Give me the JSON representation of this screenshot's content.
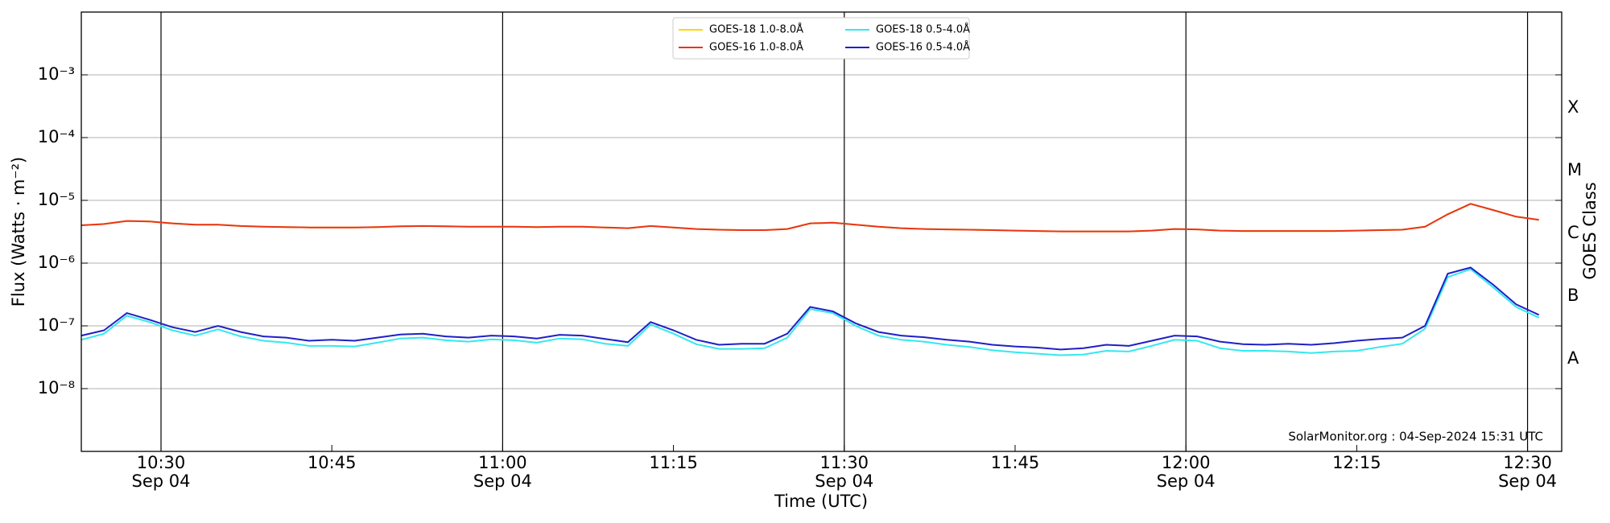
{
  "chart_data": {
    "type": "line",
    "y_label": "Flux (Watts · m⁻²)",
    "x_label": "Time (UTC)",
    "y2_label": "GOES Class",
    "annotation": "SolarMonitor.org : 04-Sep-2024 15:31 UTC",
    "log_y": true,
    "grid": true,
    "legend": "top",
    "xlim": [
      "10:23",
      "12:33"
    ],
    "xticks": [
      {
        "value": "10:30",
        "label": "10:30\nSep 04"
      },
      "10:45",
      {
        "value": "11:00",
        "label": "11:00\nSep 04"
      },
      "11:15",
      {
        "value": "11:30",
        "label": "11:30\nSep 04"
      },
      "11:45",
      {
        "value": "12:00",
        "label": "12:00\nSep 04"
      },
      "12:15",
      {
        "value": "12:30",
        "label": "12:30\nSep 04"
      }
    ],
    "ylim": [
      1e-09,
      0.01
    ],
    "yticks": [
      {
        "value": 1e-08,
        "label": "10⁻⁸"
      },
      {
        "value": 1e-07,
        "label": "10⁻⁷"
      },
      {
        "value": 1e-06,
        "label": "10⁻⁶"
      },
      {
        "value": 1e-05,
        "label": "10⁻⁵"
      },
      {
        "value": 0.0001,
        "label": "10⁻⁴"
      },
      {
        "value": 0.001,
        "label": "10⁻³"
      }
    ],
    "y2lim": [
      1e-09,
      0.01
    ],
    "y2ticks": [
      {
        "value": 3e-08,
        "label": "A"
      },
      {
        "value": 3e-07,
        "label": "B"
      },
      {
        "value": 3e-06,
        "label": "C"
      },
      {
        "value": 3e-05,
        "label": "M"
      },
      {
        "value": 0.0003,
        "label": "X"
      }
    ],
    "x": [
      "10:23",
      "10:25",
      "10:27",
      "10:29",
      "10:31",
      "10:33",
      "10:35",
      "10:37",
      "10:39",
      "10:41",
      "10:43",
      "10:45",
      "10:47",
      "10:49",
      "10:51",
      "10:53",
      "10:55",
      "10:57",
      "10:59",
      "11:01",
      "11:03",
      "11:05",
      "11:07",
      "11:09",
      "11:11",
      "11:13",
      "11:15",
      "11:17",
      "11:19",
      "11:21",
      "11:23",
      "11:25",
      "11:27",
      "11:29",
      "11:31",
      "11:33",
      "11:35",
      "11:37",
      "11:39",
      "11:41",
      "11:43",
      "11:45",
      "11:47",
      "11:49",
      "11:51",
      "11:53",
      "11:55",
      "11:57",
      "11:59",
      "12:01",
      "12:03",
      "12:05",
      "12:07",
      "12:09",
      "12:11",
      "12:13",
      "12:15",
      "12:17",
      "12:19",
      "12:21",
      "12:23",
      "12:25",
      "12:27",
      "12:29",
      "12:31"
    ],
    "series": [
      {
        "name": "GOES-18 1.0-8.0Å",
        "color": "#ffd700",
        "values": [
          4e-06,
          4.2e-06,
          4.7e-06,
          4.6e-06,
          4.3e-06,
          4.1e-06,
          4.1e-06,
          3.9e-06,
          3.8e-06,
          3.75e-06,
          3.7e-06,
          3.7e-06,
          3.7e-06,
          3.75e-06,
          3.85e-06,
          3.9e-06,
          3.85e-06,
          3.8e-06,
          3.8e-06,
          3.8e-06,
          3.75e-06,
          3.8e-06,
          3.8e-06,
          3.7e-06,
          3.6e-06,
          3.9e-06,
          3.7e-06,
          3.5e-06,
          3.4e-06,
          3.35e-06,
          3.35e-06,
          3.5e-06,
          4.3e-06,
          4.4e-06,
          4.1e-06,
          3.8e-06,
          3.6e-06,
          3.5e-06,
          3.45e-06,
          3.4e-06,
          3.35e-06,
          3.3e-06,
          3.25e-06,
          3.2e-06,
          3.2e-06,
          3.2e-06,
          3.2e-06,
          3.3e-06,
          3.5e-06,
          3.45e-06,
          3.3e-06,
          3.25e-06,
          3.25e-06,
          3.25e-06,
          3.25e-06,
          3.25e-06,
          3.3e-06,
          3.35e-06,
          3.4e-06,
          3.8e-06,
          6e-06,
          8.8e-06,
          7e-06,
          5.5e-06,
          4.9e-06
        ]
      },
      {
        "name": "GOES-16 1.0-8.0Å",
        "color": "#e8351b",
        "values": [
          4e-06,
          4.2e-06,
          4.7e-06,
          4.6e-06,
          4.3e-06,
          4.1e-06,
          4.1e-06,
          3.9e-06,
          3.8e-06,
          3.75e-06,
          3.7e-06,
          3.7e-06,
          3.7e-06,
          3.75e-06,
          3.85e-06,
          3.9e-06,
          3.85e-06,
          3.8e-06,
          3.8e-06,
          3.8e-06,
          3.75e-06,
          3.8e-06,
          3.8e-06,
          3.7e-06,
          3.6e-06,
          3.9e-06,
          3.7e-06,
          3.5e-06,
          3.4e-06,
          3.35e-06,
          3.35e-06,
          3.5e-06,
          4.3e-06,
          4.4e-06,
          4.1e-06,
          3.8e-06,
          3.6e-06,
          3.5e-06,
          3.45e-06,
          3.4e-06,
          3.35e-06,
          3.3e-06,
          3.25e-06,
          3.2e-06,
          3.2e-06,
          3.2e-06,
          3.2e-06,
          3.3e-06,
          3.5e-06,
          3.45e-06,
          3.3e-06,
          3.25e-06,
          3.25e-06,
          3.25e-06,
          3.25e-06,
          3.25e-06,
          3.3e-06,
          3.35e-06,
          3.4e-06,
          3.8e-06,
          6e-06,
          8.8e-06,
          7e-06,
          5.5e-06,
          4.9e-06
        ]
      },
      {
        "name": "GOES-18 0.5-4.0Å",
        "color": "#33e8f0",
        "values": [
          6e-08,
          7.5e-08,
          1.45e-07,
          1.15e-07,
          8.5e-08,
          7e-08,
          8.8e-08,
          6.8e-08,
          5.8e-08,
          5.4e-08,
          4.8e-08,
          4.8e-08,
          4.7e-08,
          5.4e-08,
          6.3e-08,
          6.5e-08,
          5.9e-08,
          5.6e-08,
          6.1e-08,
          5.9e-08,
          5.4e-08,
          6.3e-08,
          6.1e-08,
          5.2e-08,
          4.8e-08,
          1.05e-07,
          7.5e-08,
          5.1e-08,
          4.3e-08,
          4.3e-08,
          4.4e-08,
          6.5e-08,
          1.85e-07,
          1.6e-07,
          1e-07,
          7e-08,
          6e-08,
          5.6e-08,
          5e-08,
          4.6e-08,
          4.1e-08,
          3.8e-08,
          3.6e-08,
          3.4e-08,
          3.5e-08,
          4e-08,
          3.9e-08,
          4.8e-08,
          6e-08,
          5.8e-08,
          4.4e-08,
          4e-08,
          4e-08,
          3.9e-08,
          3.7e-08,
          3.9e-08,
          4e-08,
          4.6e-08,
          5.2e-08,
          9e-08,
          6e-07,
          8e-07,
          4.1e-07,
          2e-07,
          1.35e-07
        ]
      },
      {
        "name": "GOES-16 0.5-4.0Å",
        "color": "#1f1fc8",
        "values": [
          7e-08,
          8.5e-08,
          1.6e-07,
          1.25e-07,
          9.5e-08,
          8e-08,
          1e-07,
          8e-08,
          6.8e-08,
          6.5e-08,
          5.8e-08,
          6e-08,
          5.8e-08,
          6.5e-08,
          7.3e-08,
          7.5e-08,
          6.8e-08,
          6.5e-08,
          7e-08,
          6.8e-08,
          6.3e-08,
          7.2e-08,
          7e-08,
          6.2e-08,
          5.5e-08,
          1.15e-07,
          8.5e-08,
          6e-08,
          5e-08,
          5.2e-08,
          5.2e-08,
          7.5e-08,
          2e-07,
          1.7e-07,
          1.1e-07,
          8e-08,
          7e-08,
          6.6e-08,
          6e-08,
          5.6e-08,
          5e-08,
          4.7e-08,
          4.5e-08,
          4.2e-08,
          4.4e-08,
          5e-08,
          4.8e-08,
          5.8e-08,
          7e-08,
          6.8e-08,
          5.6e-08,
          5.1e-08,
          5e-08,
          5.2e-08,
          5e-08,
          5.3e-08,
          5.8e-08,
          6.2e-08,
          6.5e-08,
          1e-07,
          6.8e-07,
          8.5e-07,
          4.5e-07,
          2.2e-07,
          1.5e-07
        ]
      }
    ]
  }
}
